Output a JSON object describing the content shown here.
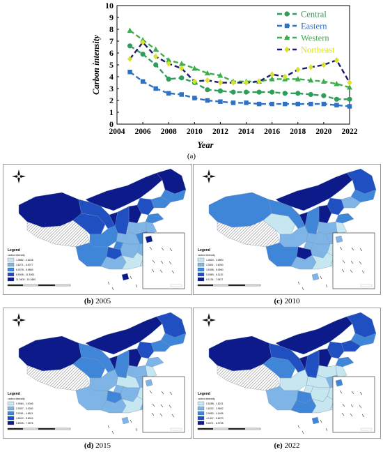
{
  "chart_data": {
    "type": "line",
    "title": "",
    "xlabel": "Year",
    "ylabel": "Carbon intensity",
    "xlim": [
      2004,
      2022
    ],
    "ylim": [
      0,
      10
    ],
    "x_ticks": [
      2004,
      2006,
      2008,
      2010,
      2012,
      2014,
      2016,
      2018,
      2020,
      2022
    ],
    "y_ticks": [
      0,
      1,
      2,
      3,
      4,
      5,
      6,
      7,
      8,
      9,
      10
    ],
    "grid": false,
    "legend_position": "top-right",
    "x": [
      2005,
      2006,
      2007,
      2008,
      2009,
      2010,
      2011,
      2012,
      2013,
      2014,
      2015,
      2016,
      2017,
      2018,
      2019,
      2020,
      2021,
      2022
    ],
    "series": [
      {
        "name": "Central",
        "color": "#2e9e5b",
        "marker": "circle",
        "values": [
          6.6,
          5.9,
          5.0,
          3.8,
          3.9,
          3.5,
          2.9,
          2.8,
          2.7,
          2.7,
          2.7,
          2.7,
          2.6,
          2.6,
          2.5,
          2.4,
          2.1,
          2.1
        ]
      },
      {
        "name": "Eastern",
        "color": "#2f72c4",
        "marker": "square",
        "values": [
          4.4,
          3.6,
          3.0,
          2.6,
          2.5,
          2.2,
          2.0,
          1.9,
          1.8,
          1.8,
          1.7,
          1.7,
          1.7,
          1.7,
          1.7,
          1.7,
          1.6,
          1.5
        ]
      },
      {
        "name": "Western",
        "color": "#3dae4b",
        "marker": "triangle",
        "values": [
          7.9,
          7.1,
          6.3,
          5.4,
          5.1,
          4.7,
          4.3,
          4.1,
          3.6,
          3.6,
          3.6,
          3.8,
          3.8,
          3.8,
          3.7,
          3.6,
          3.4,
          3.1
        ]
      },
      {
        "name": "Northeast",
        "color": "#1a1a6e",
        "marker": "diamond",
        "marker_color": "#d8e22a",
        "values": [
          5.5,
          6.9,
          5.7,
          5.1,
          4.7,
          3.6,
          3.7,
          3.5,
          3.5,
          3.5,
          3.6,
          4.2,
          4.0,
          4.6,
          4.8,
          5.0,
          5.4,
          3.5
        ]
      }
    ]
  },
  "figure": {
    "chart_label": "(a)"
  },
  "maps": [
    {
      "id": "b",
      "letter": "(b)",
      "year": "2005",
      "legend_title": "Legend",
      "legend_subtitle": "carbon intensity",
      "classes": [
        "1.5862 - 3.6228",
        "3.6271 - 6.0077",
        "6.0078 - 8.9883",
        "8.9908 - 11.3060",
        "11.3405 - 15.1660"
      ]
    },
    {
      "id": "c",
      "letter": "(c)",
      "year": "2010",
      "legend_title": "Legend",
      "legend_subtitle": "carbon intensity",
      "classes": [
        "1.0820 - 2.0800",
        "2.0801 - 3.6390",
        "3.6398 - 5.0560",
        "5.0580 - 6.1130",
        "6.1135 - 7.9527"
      ]
    },
    {
      "id": "d",
      "letter": "(d)",
      "year": "2015",
      "legend_title": "Legend",
      "legend_subtitle": "carbon intensity",
      "classes": [
        "0.9964 - 2.0006",
        "2.0007 - 3.0260",
        "3.0261 - 4.6511",
        "4.6512 - 5.8924",
        "5.8925 - 7.2576"
      ]
    },
    {
      "id": "e",
      "letter": "(e)",
      "year": "2022",
      "legend_title": "Legend",
      "legend_subtitle": "carbon intensity",
      "classes": [
        "0.5288 - 1.6221",
        "1.6222 - 2.9652",
        "2.9653 - 4.1406",
        "4.1407 - 5.6970",
        "5.6971 - 6.9708"
      ]
    }
  ],
  "colors": {
    "class_1": "#c6e7f0",
    "class_2": "#7eb4e6",
    "class_3": "#3f86d8",
    "class_4": "#1f4fc0",
    "class_5": "#0c1a8a",
    "hatch": "#555555"
  }
}
